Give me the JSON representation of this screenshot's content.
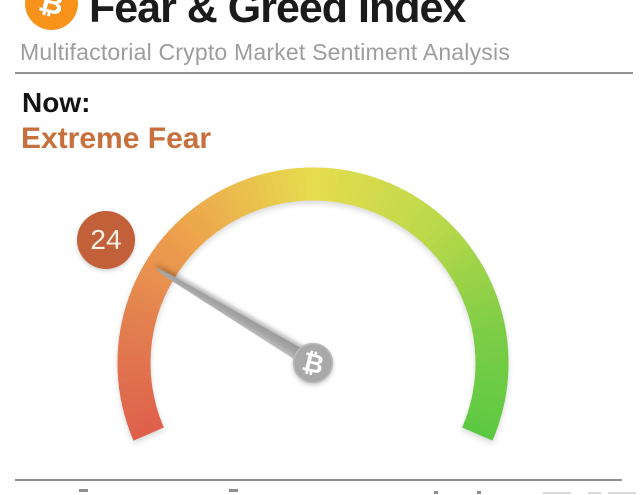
{
  "header": {
    "icon": "bitcoin-icon",
    "title": "Fear & Greed Index",
    "subtitle": "Multifactorial Crypto Market Sentiment Analysis"
  },
  "now": {
    "label": "Now:",
    "sentiment": "Extreme Fear",
    "sentiment_color": "#c8703d"
  },
  "icons": {
    "bitcoin_glyph": "₿"
  },
  "chart_data": {
    "type": "gauge",
    "title": "Fear & Greed Index",
    "value": 24,
    "min": 0,
    "max": 100,
    "value_label": "24",
    "sentiment": "Extreme Fear",
    "arc_start_deg": 203.4,
    "arc_end_deg": -23.4,
    "gradient_stops": [
      {
        "t": 0.0,
        "color": "#df604c"
      },
      {
        "t": 0.15,
        "color": "#e27d50"
      },
      {
        "t": 0.3,
        "color": "#eda14c"
      },
      {
        "t": 0.5,
        "color": "#e6dc4e"
      },
      {
        "t": 0.68,
        "color": "#bcd94a"
      },
      {
        "t": 0.85,
        "color": "#7ecd46"
      },
      {
        "t": 1.0,
        "color": "#5cc943"
      }
    ],
    "badge": {
      "label": "24",
      "color": "#c2603a"
    },
    "needle_color": "#a8a8a8",
    "hub_color": "#a9a9a9",
    "hub_icon": "bitcoin-icon"
  }
}
